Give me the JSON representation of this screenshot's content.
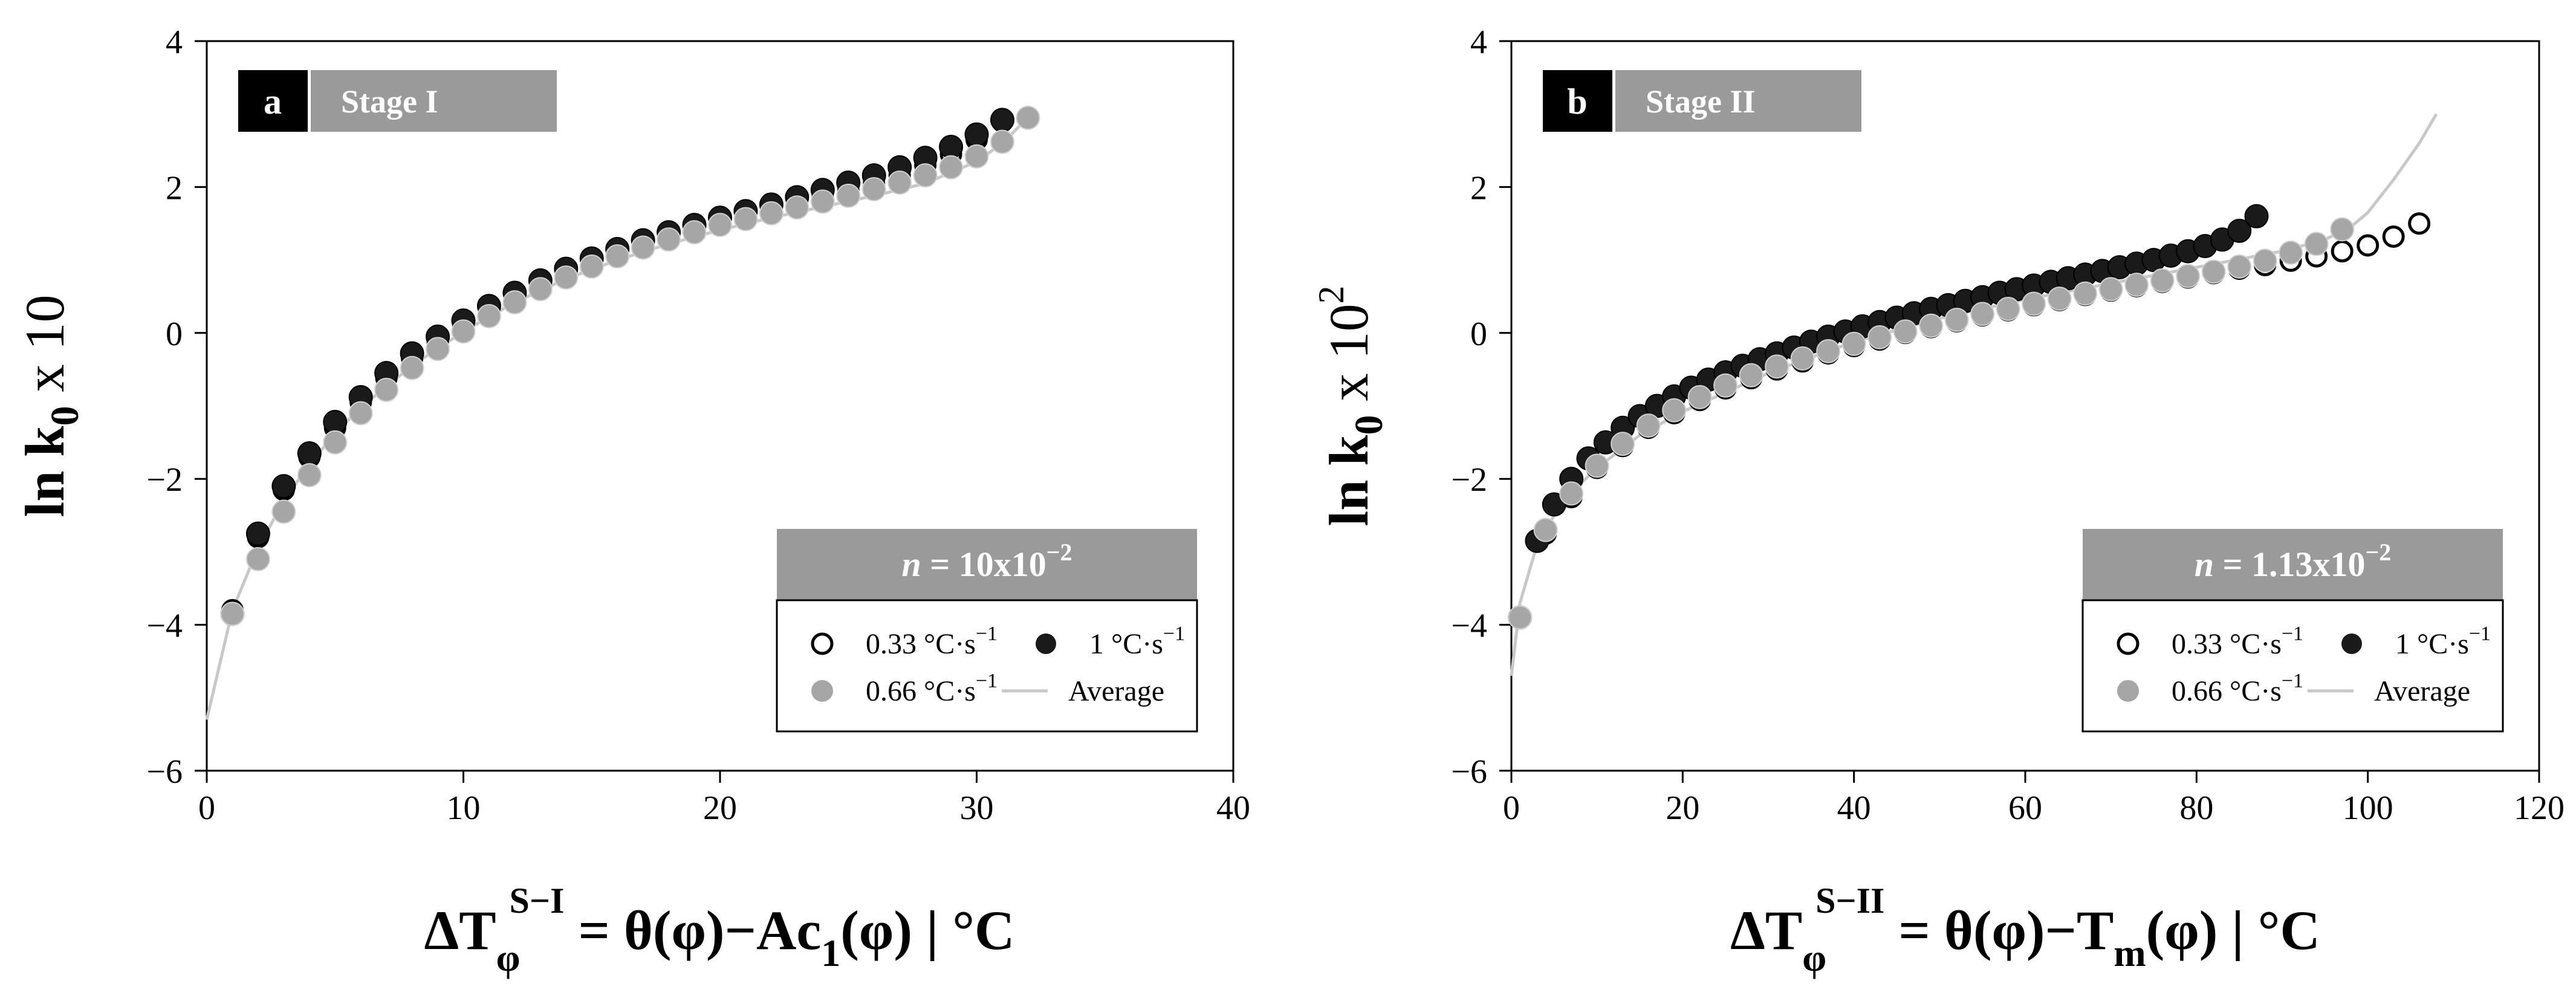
{
  "chart_data": [
    {
      "type": "scatter",
      "panel_letter": "a",
      "panel_title": "Stage I",
      "xlabel": {
        "main": "ΔT",
        "sub": "φ",
        "sup": "S−I",
        "rest": " = θ(φ)−Ac",
        "sub2": "1",
        "tail": "(φ) | °C"
      },
      "ylabel": {
        "main": "ln k",
        "sub": "0",
        "tail": " x 10",
        "sup": ""
      },
      "xlim": [
        0,
        40
      ],
      "ylim": [
        -6,
        4
      ],
      "xticks": [
        "0",
        "10",
        "20",
        "30",
        "40"
      ],
      "yticks": [
        "−6",
        "−4",
        "−2",
        "0",
        "2",
        "4"
      ],
      "n_label": {
        "prefix": "n",
        "eq": " = 10x10",
        "sup": "−2"
      },
      "legend": {
        "open": "0.33 °C·s",
        "black": "1 °C·s",
        "gray": "0.66 °C·s",
        "line": "Average",
        "unit_sup": "−1"
      },
      "series": [
        {
          "name": "0.33 °C·s−1",
          "marker": "open",
          "color": "#000000",
          "x": [
            1,
            2,
            3,
            4,
            5,
            6,
            7,
            8,
            9,
            10,
            11,
            12,
            13,
            14,
            15,
            16,
            17,
            18,
            19,
            20,
            21,
            22,
            23,
            24,
            25,
            26,
            27,
            28,
            29,
            30,
            31
          ],
          "y": [
            -3.8,
            -2.8,
            -2.15,
            -1.7,
            -1.3,
            -0.95,
            -0.62,
            -0.35,
            -0.12,
            0.1,
            0.3,
            0.48,
            0.65,
            0.82,
            0.97,
            1.1,
            1.22,
            1.33,
            1.43,
            1.52,
            1.6,
            1.68,
            1.77,
            1.86,
            1.95,
            2.05,
            2.16,
            2.3,
            2.45,
            2.65,
            2.9
          ]
        },
        {
          "name": "1 °C·s−1",
          "marker": "filled",
          "color": "#1a1a1a",
          "x": [
            1,
            2,
            3,
            4,
            5,
            6,
            7,
            8,
            9,
            10,
            11,
            12,
            13,
            14,
            15,
            16,
            17,
            18,
            19,
            20,
            21,
            22,
            23,
            24,
            25,
            26,
            27,
            28,
            29,
            30,
            31
          ],
          "y": [
            -3.85,
            -2.75,
            -2.1,
            -1.65,
            -1.22,
            -0.88,
            -0.55,
            -0.28,
            -0.05,
            0.17,
            0.37,
            0.55,
            0.72,
            0.88,
            1.02,
            1.15,
            1.27,
            1.38,
            1.48,
            1.58,
            1.67,
            1.76,
            1.86,
            1.96,
            2.06,
            2.16,
            2.27,
            2.4,
            2.55,
            2.72,
            2.92
          ]
        },
        {
          "name": "0.66 °C·s−1",
          "marker": "filled",
          "color": "#a6a6a6",
          "x": [
            1,
            2,
            3,
            4,
            5,
            6,
            7,
            8,
            9,
            10,
            11,
            12,
            13,
            14,
            15,
            16,
            17,
            18,
            19,
            20,
            21,
            22,
            23,
            24,
            25,
            26,
            27,
            28,
            29,
            30,
            31,
            32
          ],
          "y": [
            -3.85,
            -3.1,
            -2.45,
            -1.95,
            -1.5,
            -1.1,
            -0.78,
            -0.48,
            -0.22,
            0.02,
            0.23,
            0.42,
            0.6,
            0.76,
            0.91,
            1.05,
            1.17,
            1.28,
            1.38,
            1.48,
            1.56,
            1.64,
            1.72,
            1.8,
            1.88,
            1.97,
            2.06,
            2.16,
            2.27,
            2.42,
            2.62,
            2.95
          ]
        },
        {
          "name": "Average",
          "marker": "line",
          "color": "#c8c8c8",
          "x": [
            0,
            1,
            2,
            3,
            4,
            5,
            6,
            8,
            10,
            12,
            14,
            16,
            18,
            20,
            22,
            24,
            26,
            28,
            30,
            31,
            32
          ],
          "y": [
            -5.3,
            -3.8,
            -2.95,
            -2.3,
            -1.8,
            -1.38,
            -1.02,
            -0.45,
            0.02,
            0.42,
            0.74,
            1.0,
            1.22,
            1.41,
            1.58,
            1.73,
            1.88,
            2.05,
            2.35,
            2.6,
            2.95
          ]
        }
      ]
    },
    {
      "type": "scatter",
      "panel_letter": "b",
      "panel_title": "Stage II",
      "xlabel": {
        "main": "ΔT",
        "sub": "φ",
        "sup": "S−II",
        "rest": " = θ(φ)−T",
        "sub2": "m",
        "tail": "(φ) | °C"
      },
      "ylabel": {
        "main": "ln k",
        "sub": "0",
        "tail": " x 10",
        "sup": "2"
      },
      "xlim": [
        0,
        120
      ],
      "ylim": [
        -6,
        4
      ],
      "xticks": [
        "0",
        "20",
        "40",
        "60",
        "80",
        "100",
        "120"
      ],
      "yticks": [
        "−6",
        "−4",
        "−2",
        "0",
        "2",
        "4"
      ],
      "n_label": {
        "prefix": "n",
        "eq": " = 1.13x10",
        "sup": "−2"
      },
      "legend": {
        "open": "0.33 °C·s",
        "black": "1 °C·s",
        "gray": "0.66 °C·s",
        "line": "Average",
        "unit_sup": "−1"
      },
      "series": [
        {
          "name": "0.33 °C·s−1",
          "marker": "open",
          "color": "#000000",
          "x": [
            1,
            4,
            7,
            10,
            13,
            16,
            19,
            22,
            25,
            28,
            31,
            34,
            37,
            40,
            43,
            46,
            49,
            52,
            55,
            58,
            61,
            64,
            67,
            70,
            73,
            76,
            79,
            82,
            85,
            88,
            91,
            94,
            97,
            100,
            103,
            106
          ],
          "y": [
            -3.9,
            -2.75,
            -2.25,
            -1.85,
            -1.55,
            -1.3,
            -1.1,
            -0.92,
            -0.76,
            -0.62,
            -0.5,
            -0.39,
            -0.28,
            -0.18,
            -0.09,
            0.0,
            0.08,
            0.16,
            0.24,
            0.31,
            0.38,
            0.45,
            0.52,
            0.58,
            0.64,
            0.7,
            0.76,
            0.82,
            0.88,
            0.93,
            0.99,
            1.05,
            1.12,
            1.2,
            1.32,
            1.5
          ]
        },
        {
          "name": "1 °C·s−1",
          "marker": "filled",
          "color": "#1a1a1a",
          "x": [
            1,
            3,
            5,
            7,
            9,
            11,
            13,
            15,
            17,
            19,
            21,
            23,
            25,
            27,
            29,
            31,
            33,
            35,
            37,
            39,
            41,
            43,
            45,
            47,
            49,
            51,
            53,
            55,
            57,
            59,
            61,
            63,
            65,
            67,
            69,
            71,
            73,
            75,
            77,
            79,
            81,
            83,
            85,
            87
          ],
          "y": [
            -3.9,
            -2.85,
            -2.35,
            -2.0,
            -1.72,
            -1.5,
            -1.3,
            -1.14,
            -1.0,
            -0.87,
            -0.75,
            -0.64,
            -0.54,
            -0.45,
            -0.36,
            -0.28,
            -0.2,
            -0.12,
            -0.05,
            0.02,
            0.09,
            0.15,
            0.21,
            0.27,
            0.33,
            0.38,
            0.44,
            0.49,
            0.55,
            0.6,
            0.65,
            0.7,
            0.75,
            0.8,
            0.85,
            0.9,
            0.95,
            1.0,
            1.06,
            1.12,
            1.19,
            1.28,
            1.4,
            1.6
          ]
        },
        {
          "name": "0.66 °C·s−1",
          "marker": "filled",
          "color": "#a6a6a6",
          "x": [
            1,
            4,
            7,
            10,
            13,
            16,
            19,
            22,
            25,
            28,
            31,
            34,
            37,
            40,
            43,
            46,
            49,
            52,
            55,
            58,
            61,
            64,
            67,
            70,
            73,
            76,
            79,
            82,
            85,
            88,
            91,
            94,
            97
          ],
          "y": [
            -3.9,
            -2.7,
            -2.2,
            -1.82,
            -1.52,
            -1.27,
            -1.06,
            -0.88,
            -0.72,
            -0.58,
            -0.46,
            -0.35,
            -0.25,
            -0.15,
            -0.06,
            0.02,
            0.1,
            0.18,
            0.26,
            0.33,
            0.4,
            0.47,
            0.54,
            0.6,
            0.66,
            0.72,
            0.78,
            0.84,
            0.91,
            0.99,
            1.1,
            1.22,
            1.42
          ]
        },
        {
          "name": "Average",
          "marker": "line",
          "color": "#c8c8c8",
          "x": [
            0,
            1,
            3,
            6,
            10,
            15,
            20,
            30,
            40,
            50,
            60,
            70,
            80,
            90,
            95,
            98,
            100,
            103,
            106,
            108
          ],
          "y": [
            -4.7,
            -3.7,
            -2.9,
            -2.3,
            -1.85,
            -1.4,
            -1.08,
            -0.55,
            -0.12,
            0.2,
            0.46,
            0.68,
            0.9,
            1.12,
            1.28,
            1.45,
            1.65,
            2.1,
            2.6,
            3.0
          ]
        }
      ]
    }
  ]
}
